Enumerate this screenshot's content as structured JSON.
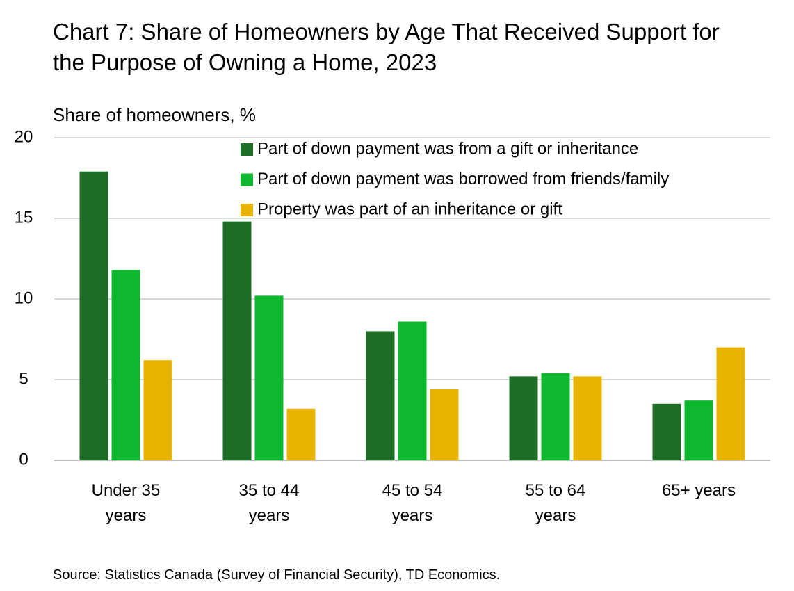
{
  "chart_data": {
    "type": "bar",
    "title": "Chart 7: Share of Homeowners by Age That Received Support for the Purpose of Owning a Home, 2023",
    "y_label": "Share of homeowners, %",
    "source": "Source: Statistics Canada (Survey of Financial Security), TD Economics.",
    "categories": [
      "Under 35 years",
      "35 to 44 years",
      "45 to 54 years",
      "55 to 64 years",
      "65+ years"
    ],
    "series": [
      {
        "name": "Part of down payment was from a gift or inheritance",
        "color": "#1e6e28",
        "values": [
          17.9,
          14.8,
          8.0,
          5.2,
          3.5
        ]
      },
      {
        "name": "Part of down payment was borrowed from friends/family",
        "color": "#0db82f",
        "values": [
          11.8,
          10.2,
          8.6,
          5.4,
          3.7
        ]
      },
      {
        "name": "Property was part of an inheritance or gift",
        "color": "#e8b400",
        "values": [
          6.2,
          3.2,
          4.4,
          5.2,
          7.0
        ]
      }
    ],
    "ylim": [
      0,
      20
    ],
    "yticks": [
      0,
      5,
      10,
      15,
      20
    ],
    "grid": true
  }
}
